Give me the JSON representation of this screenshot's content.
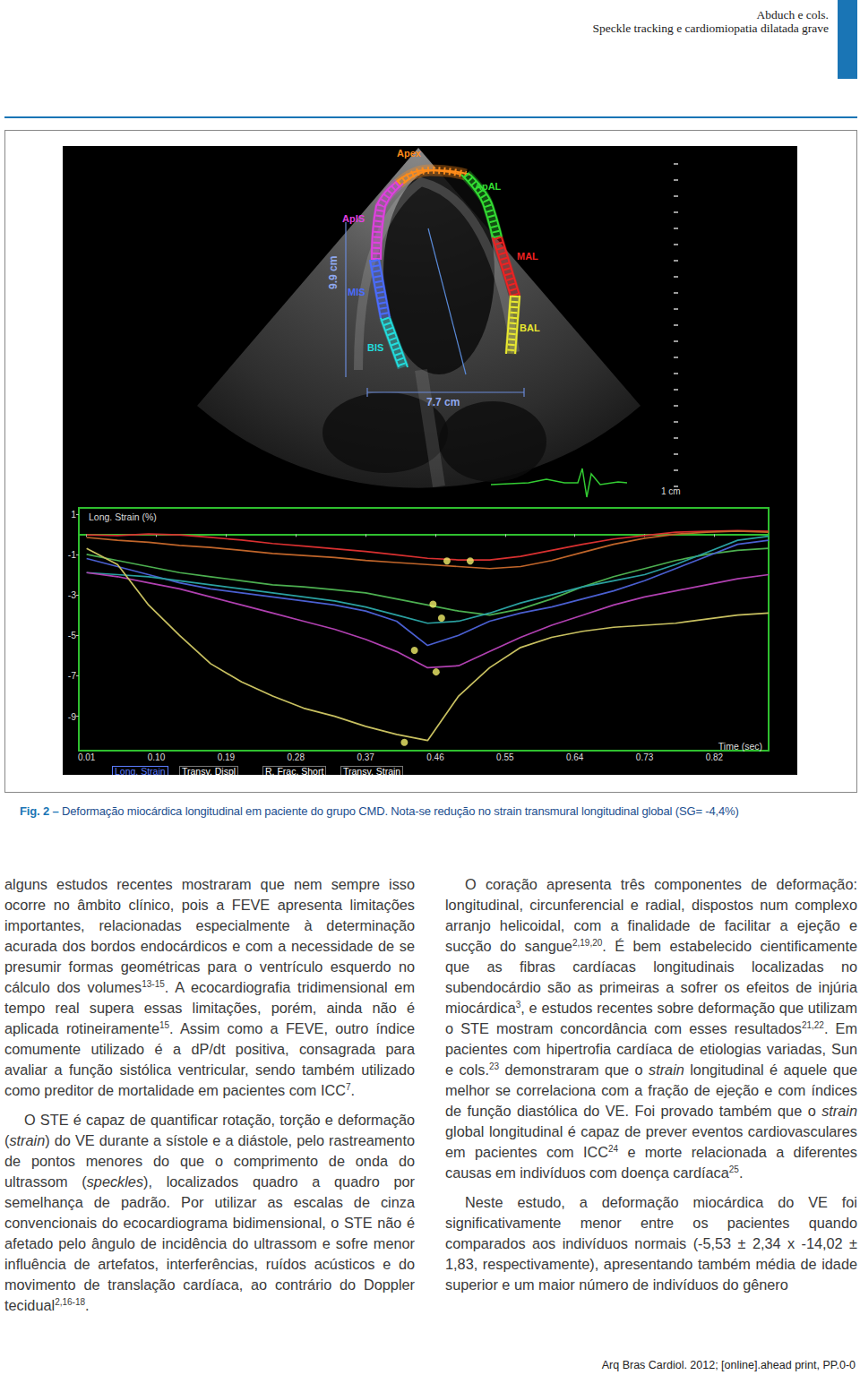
{
  "header": {
    "authors": "Abduch e cols.",
    "running_title": "Speckle tracking e cardiomiopatia dilatada grave"
  },
  "figure": {
    "segments": [
      {
        "label": "Apex",
        "color": "#ff8c1a"
      },
      {
        "label": "ApAL",
        "color": "#33dd33"
      },
      {
        "label": "ApIS",
        "color": "#e040e0"
      },
      {
        "label": "MAL",
        "color": "#ee2222"
      },
      {
        "label": "MIS",
        "color": "#4a6cff"
      },
      {
        "label": "BAL",
        "color": "#e8e830"
      },
      {
        "label": "BIS",
        "color": "#22dddd"
      }
    ],
    "scales": [
      "9.9 cm",
      "7.7 cm",
      "1 cm"
    ],
    "tabs": [
      "Long. Strain",
      "Transv. Displ",
      "R. Frac. Short",
      "Transv. Strain"
    ]
  },
  "chart_data": {
    "type": "line",
    "ylabel": "Long. Strain (%)",
    "xlabel": "Time (sec)",
    "x": [
      0.01,
      0.05,
      0.09,
      0.13,
      0.17,
      0.21,
      0.25,
      0.29,
      0.33,
      0.37,
      0.41,
      0.45,
      0.49,
      0.53,
      0.57,
      0.61,
      0.65,
      0.69,
      0.73,
      0.77,
      0.81,
      0.85,
      0.89
    ],
    "xlim": [
      0,
      0.89
    ],
    "xticks": [
      0.01,
      {
        "value": 0.1,
        "label": "0.10"
      },
      0.19,
      0.28,
      0.37,
      0.46,
      0.55,
      0.64,
      0.73,
      0.82
    ],
    "ylim": [
      -10.7,
      1.3
    ],
    "yticks": [
      1,
      -1,
      -3,
      -5,
      -7,
      -9
    ],
    "grid": false,
    "series": [
      {
        "color": "#d83030",
        "values": [
          -0.03,
          -0.07,
          0.01,
          -0.03,
          -0.16,
          -0.29,
          -0.46,
          -0.59,
          -0.72,
          -0.85,
          -1.02,
          -1.19,
          -1.27,
          -1.27,
          -1.1,
          -0.8,
          -0.5,
          -0.24,
          -0.07,
          0.1,
          0.14,
          0.18,
          0.14
        ]
      },
      {
        "color": "#c0652a",
        "values": [
          -0.16,
          -0.3,
          -0.4,
          -0.55,
          -0.65,
          -0.8,
          -0.95,
          -1.05,
          -1.15,
          -1.3,
          -1.4,
          -1.5,
          -1.6,
          -1.7,
          -1.6,
          -1.3,
          -0.9,
          -0.5,
          -0.2,
          0.0,
          0.1,
          0.15,
          0.1
        ]
      },
      {
        "color": "#4caf50",
        "values": [
          -1.0,
          -1.3,
          -1.6,
          -1.9,
          -2.1,
          -2.3,
          -2.5,
          -2.6,
          -2.75,
          -2.9,
          -3.2,
          -3.5,
          -3.8,
          -4.0,
          -3.7,
          -3.2,
          -2.6,
          -2.1,
          -1.7,
          -1.3,
          -1.0,
          -0.8,
          -0.7
        ]
      },
      {
        "color": "#4a5fd0",
        "values": [
          -1.2,
          -1.6,
          -2.0,
          -2.4,
          -2.7,
          -2.9,
          -3.1,
          -3.3,
          -3.5,
          -3.8,
          -4.3,
          -5.5,
          -5.0,
          -4.3,
          -3.9,
          -3.6,
          -3.2,
          -2.8,
          -2.3,
          -1.7,
          -1.1,
          -0.5,
          -0.3
        ]
      },
      {
        "color": "#2aa0a0",
        "values": [
          -1.9,
          -2.0,
          -2.1,
          -2.3,
          -2.5,
          -2.7,
          -2.9,
          -3.1,
          -3.3,
          -3.6,
          -4.0,
          -4.4,
          -4.3,
          -3.9,
          -3.4,
          -3.0,
          -2.6,
          -2.3,
          -2.0,
          -1.5,
          -0.9,
          -0.3,
          -0.1
        ]
      },
      {
        "color": "#b040b0",
        "values": [
          -1.9,
          -2.1,
          -2.4,
          -2.7,
          -3.1,
          -3.5,
          -3.9,
          -4.3,
          -4.7,
          -5.2,
          -5.8,
          -6.6,
          -6.5,
          -5.8,
          -5.1,
          -4.5,
          -4.0,
          -3.5,
          -3.1,
          -2.8,
          -2.5,
          -2.2,
          -2.0
        ]
      },
      {
        "color": "#c8c060",
        "values": [
          -0.7,
          -1.5,
          -3.5,
          -5.0,
          -6.4,
          -7.3,
          -8.0,
          -8.6,
          -9.0,
          -9.5,
          -9.9,
          -10.2,
          -8.0,
          -6.6,
          -5.6,
          -5.1,
          -4.8,
          -4.6,
          -4.5,
          -4.4,
          -4.2,
          -4.0,
          -3.9
        ]
      },
      {
        "type": "scatter",
        "marker": "circle",
        "color": "#f2ef6a",
        "x": [
          0.475,
          0.505,
          0.457,
          0.468,
          0.433,
          0.461,
          0.42
        ],
        "values": [
          -1.32,
          -1.32,
          -3.46,
          -4.15,
          -5.74,
          -6.81,
          -10.29
        ]
      }
    ]
  },
  "caption": {
    "label": "Fig. 2 –",
    "text": "Deformação miocárdica longitudinal em paciente do grupo CMD. Nota-se redução no strain transmural longitudinal global (SG= -4,4%)"
  },
  "columns": [
    [
      [
        "alguns estudos recentes mostraram que nem sempre isso ocorre no âmbito clínico, pois a FEVE apresenta limitações importantes, relacionadas especialmente à determinação acurada dos bordos endocárdicos e com a necessidade de se presumir formas geométricas para o ventrículo esquerdo no cálculo dos volumes",
        {
          "sup": "13-15"
        },
        ". A ecocardiografia tridimensional em tempo real supera essas limitações, porém, ainda não é aplicada rotineiramente",
        {
          "sup": "15"
        },
        ". Assim como a FEVE, outro índice comumente utilizado é a dP/dt positiva, consagrada para avaliar a função sistólica ventricular, sendo também utilizado como preditor de mortalidade em pacientes com ICC",
        {
          "sup": "7"
        },
        "."
      ],
      [
        "O STE é capaz de quantificar rotação, torção e deformação (",
        {
          "i": "strain"
        },
        ") do VE durante a sístole e a diástole, pelo rastreamento de pontos menores do que o comprimento de onda do ultrassom (",
        {
          "i": "speckles"
        },
        "), localizados quadro a quadro por semelhança de padrão. Por utilizar as escalas de cinza convencionais do ecocardiograma bidimensional, o STE não é afetado pelo ângulo de incidência do ultrassom e sofre menor influência de artefatos, interferências, ruídos acústicos e do movimento de translação cardíaca, ao contrário do Doppler tecidual",
        {
          "sup": "2,16-18"
        },
        "."
      ]
    ],
    [
      [
        "O coração apresenta três componentes de deformação: longitudinal, circunferencial e radial, dispostos num complexo arranjo helicoidal, com a finalidade de facilitar a ejeção e sucção do sangue",
        {
          "sup": "2,19,20"
        },
        ". É bem estabelecido cientificamente que as fibras cardíacas longitudinais localizadas no subendocárdio são as primeiras a sofrer os efeitos de injúria miocárdica",
        {
          "sup": "3"
        },
        ", e estudos recentes sobre deformação que utilizam o STE mostram concordância com esses resultados",
        {
          "sup": "21,22"
        },
        ". Em pacientes com hipertrofia cardíaca de etiologias variadas, Sun e cols.",
        {
          "sup": "23"
        },
        " demonstraram que o ",
        {
          "i": "strain"
        },
        " longitudinal é aquele que melhor se correlaciona com a fração de ejeção e com índices de função diastólica do VE. Foi provado também que o ",
        {
          "i": "strain"
        },
        " global longitudinal é capaz de prever eventos cardiovasculares em pacientes com ICC",
        {
          "sup": "24"
        },
        " e morte relacionada a diferentes causas em indivíduos com doença cardíaca",
        {
          "sup": "25"
        },
        "."
      ],
      [
        "Neste estudo, a deformação miocárdica do VE foi significativamente menor entre os pacientes quando comparados aos indivíduos normais (-5,53 ± 2,34 x -14,02 ± 1,83, respectivamente), apresentando também média de idade superior e um maior número de indivíduos do gênero"
      ]
    ]
  ],
  "footer": "Arq Bras Cardiol. 2012; [online].ahead print, PP.0-0"
}
